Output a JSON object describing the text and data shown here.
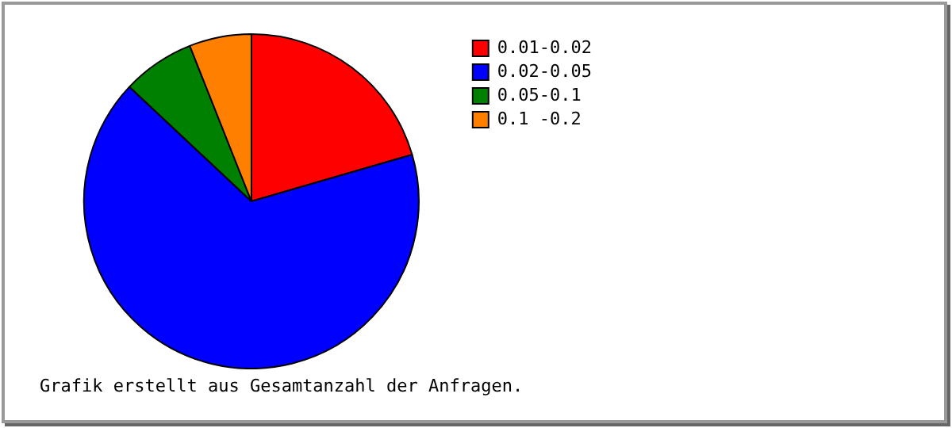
{
  "chart_data": {
    "type": "pie",
    "categories": [
      "0.01-0.02",
      "0.02-0.05",
      "0.05-0.1",
      "0.1 -0.2"
    ],
    "values": [
      20.5,
      66.5,
      7,
      6
    ],
    "colors": [
      "#ff0000",
      "#0000ff",
      "#008000",
      "#ff8000"
    ],
    "legend": "right",
    "annotations": [
      "Grafik erstellt aus Gesamtanzahl der Anfragen."
    ]
  }
}
